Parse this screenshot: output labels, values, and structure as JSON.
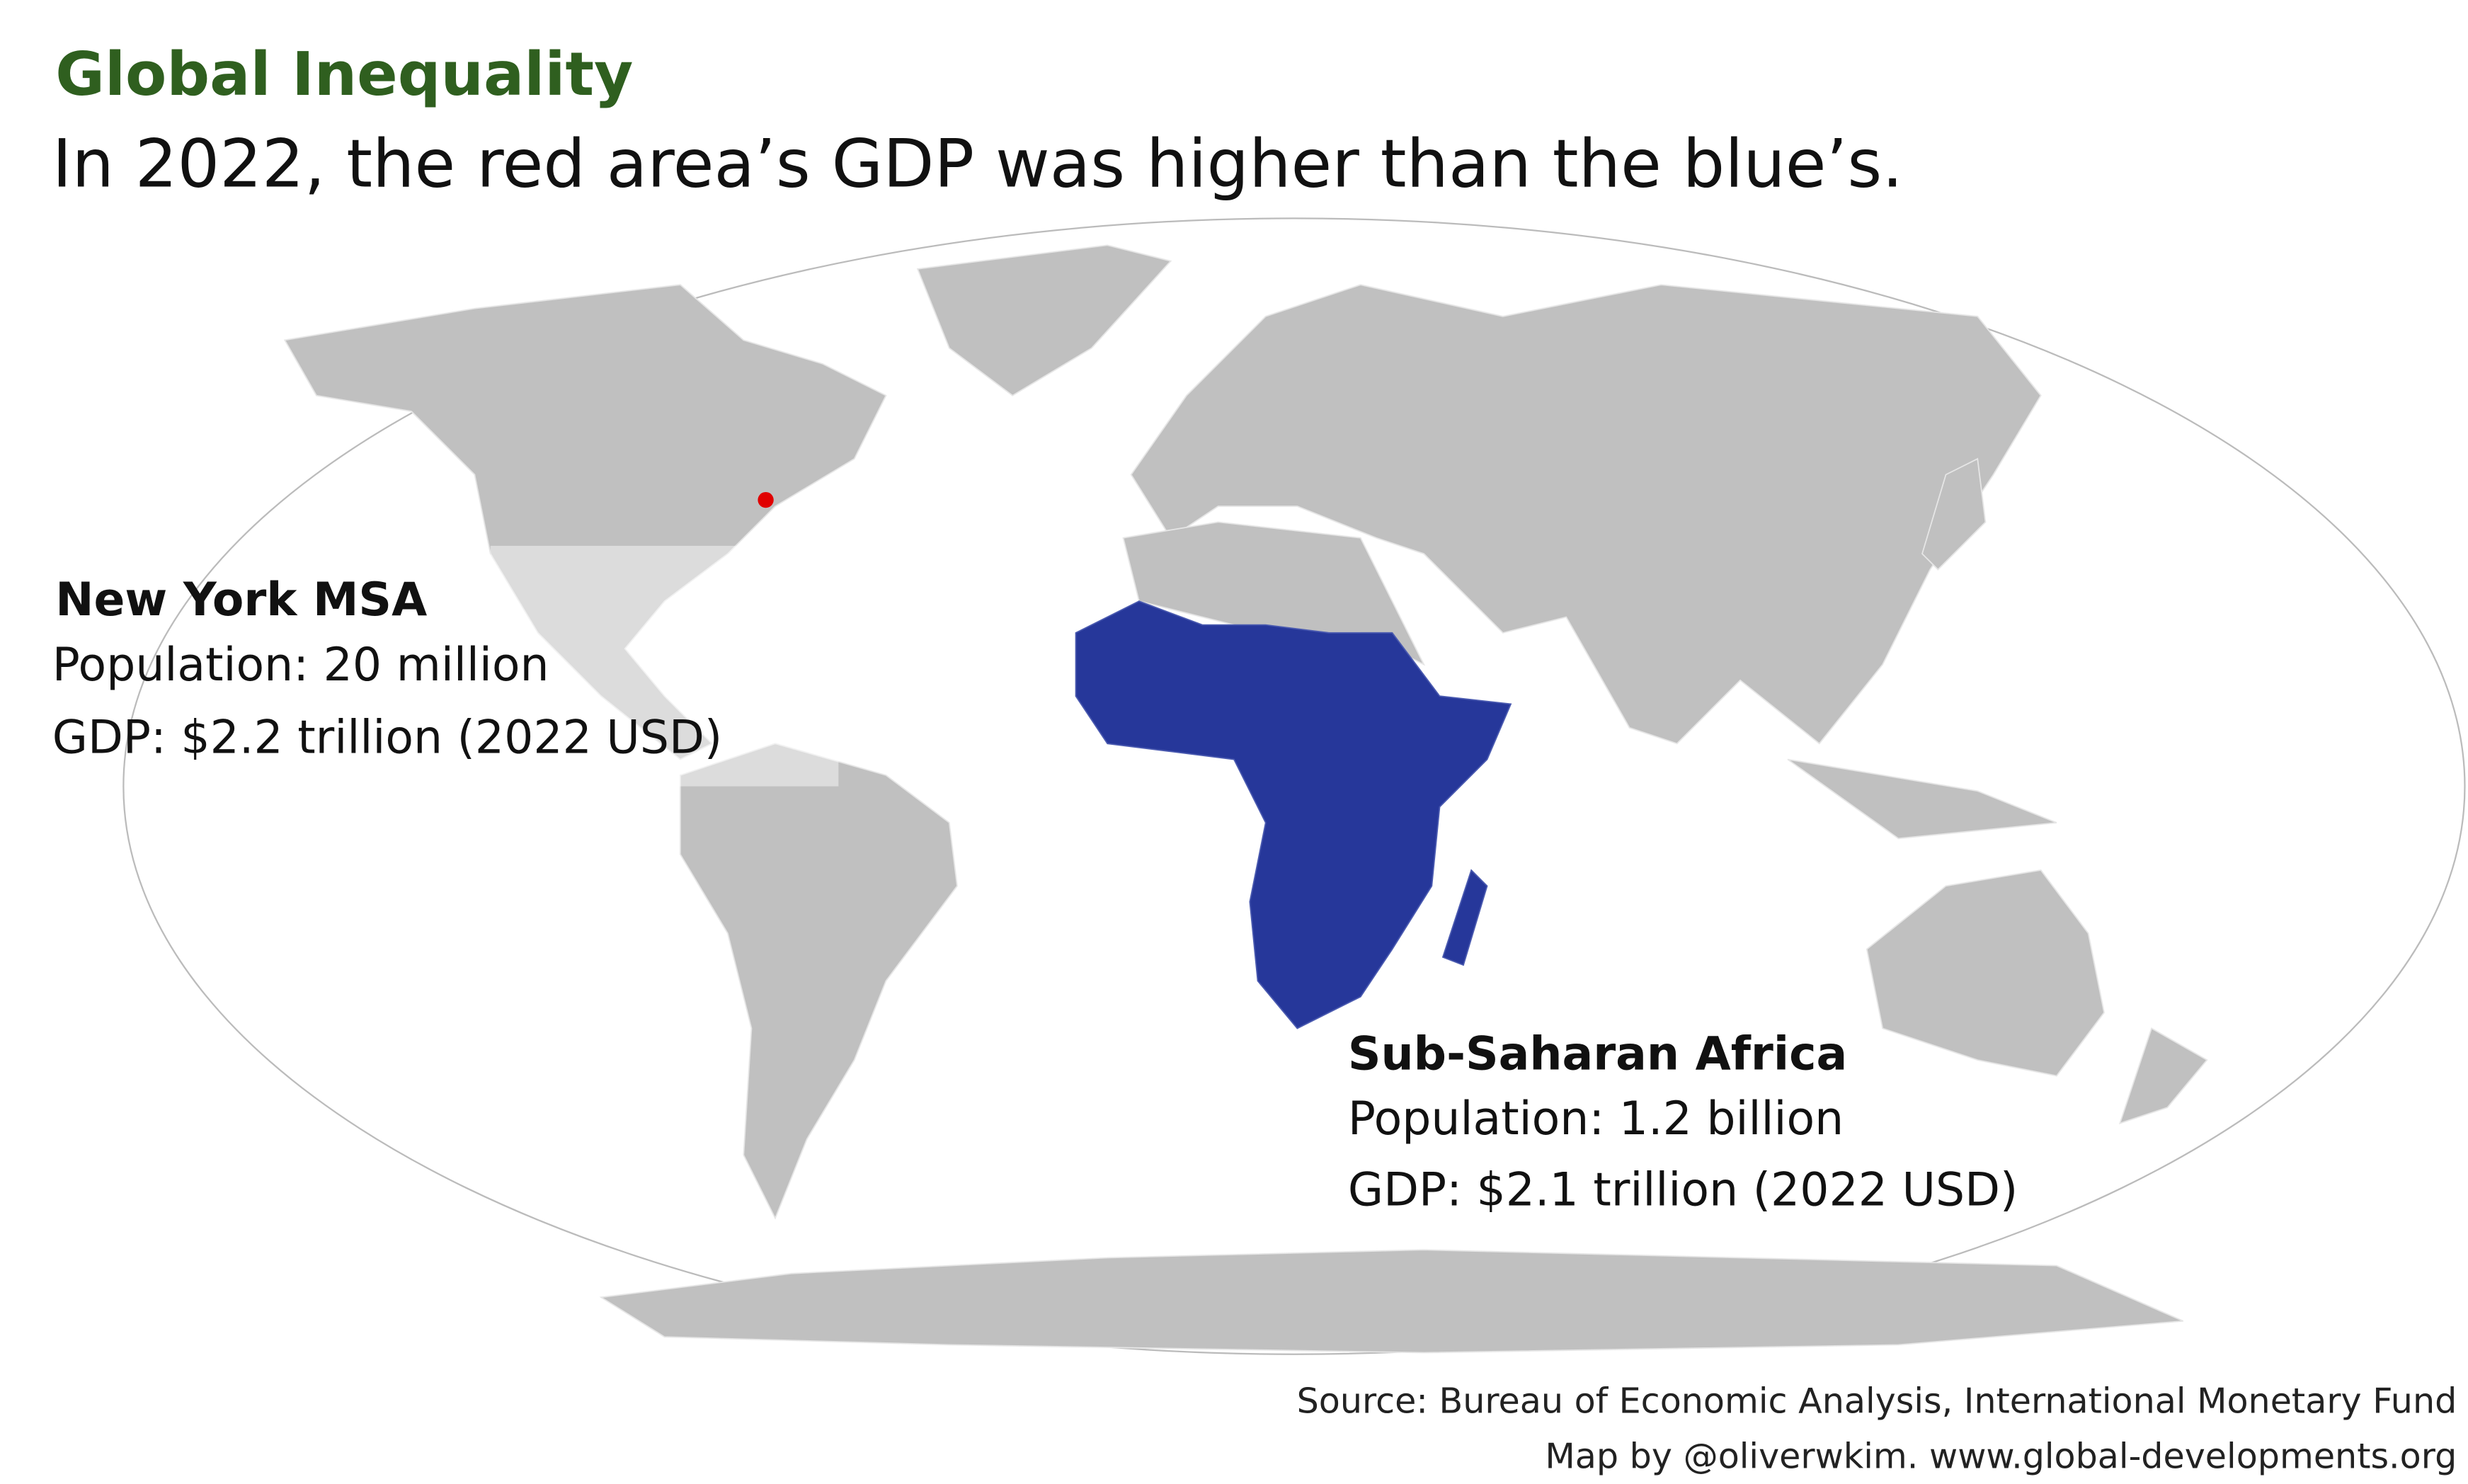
{
  "title": "Global Inequality",
  "subtitle": "In 2022, the red area’s GDP was higher than the blue’s.",
  "annotations": {
    "new_york": {
      "heading": "New York MSA",
      "population": "Population: 20 million",
      "gdp": "GDP: $2.2 trillion (2022 USD)"
    },
    "africa": {
      "heading": "Sub-Saharan Africa",
      "population": "Population: 1.2 billion",
      "gdp": "GDP: $2.1 trillion (2022 USD)"
    }
  },
  "footer": {
    "source": "Source: Bureau of Economic Analysis, International Monetary Fund",
    "credit": "Map by @oliverwkim. www.global-developments.org"
  }
}
